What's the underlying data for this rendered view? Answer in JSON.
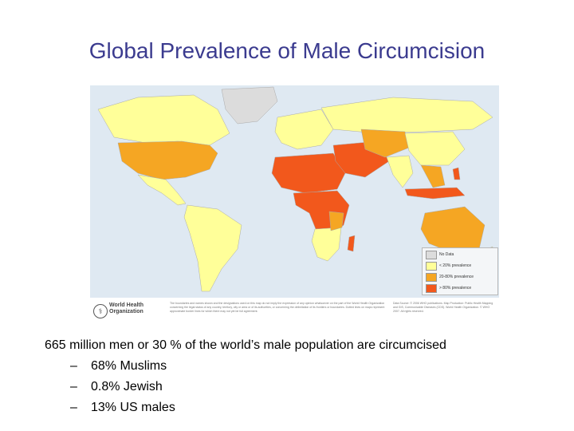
{
  "slide": {
    "title": "Global Prevalence of Male Circumcision",
    "statement": "665 million men or 30 % of the world’s male population are circumcised",
    "bullets": [
      {
        "dash": "–",
        "text": "68% Muslims"
      },
      {
        "dash": "–",
        "text": "0.8% Jewish"
      },
      {
        "dash": "–",
        "text": "13% US males"
      }
    ]
  },
  "map": {
    "legend": [
      {
        "label": "No Data",
        "color": "#dcdcdc"
      },
      {
        "label": "< 20% prevalence",
        "color": "#ffff99"
      },
      {
        "label": "20-80% prevalence",
        "color": "#f5a623"
      },
      {
        "label": "> 80% prevalence",
        "color": "#f2581c"
      }
    ],
    "organization": "World Health Organization",
    "logo_icon": "who-emblem-icon",
    "disclaimer": "The boundaries and names shown and the designations used on this map do not imply the expression of any opinion whatsoever on the part of the World Health Organization concerning the legal status of any country, territory, city or area or of its authorities, or concerning the delimitation of its frontiers or boundaries. Dotted lines on maps represent approximate border lines for which there may not yet be full agreement.",
    "source": "Data Source: © 2006 WHO publications. Map Production: Public Health Mapping and GIS, Communicable Diseases (CDS). World Health Organization. © WHO 2007. All rights reserved."
  }
}
